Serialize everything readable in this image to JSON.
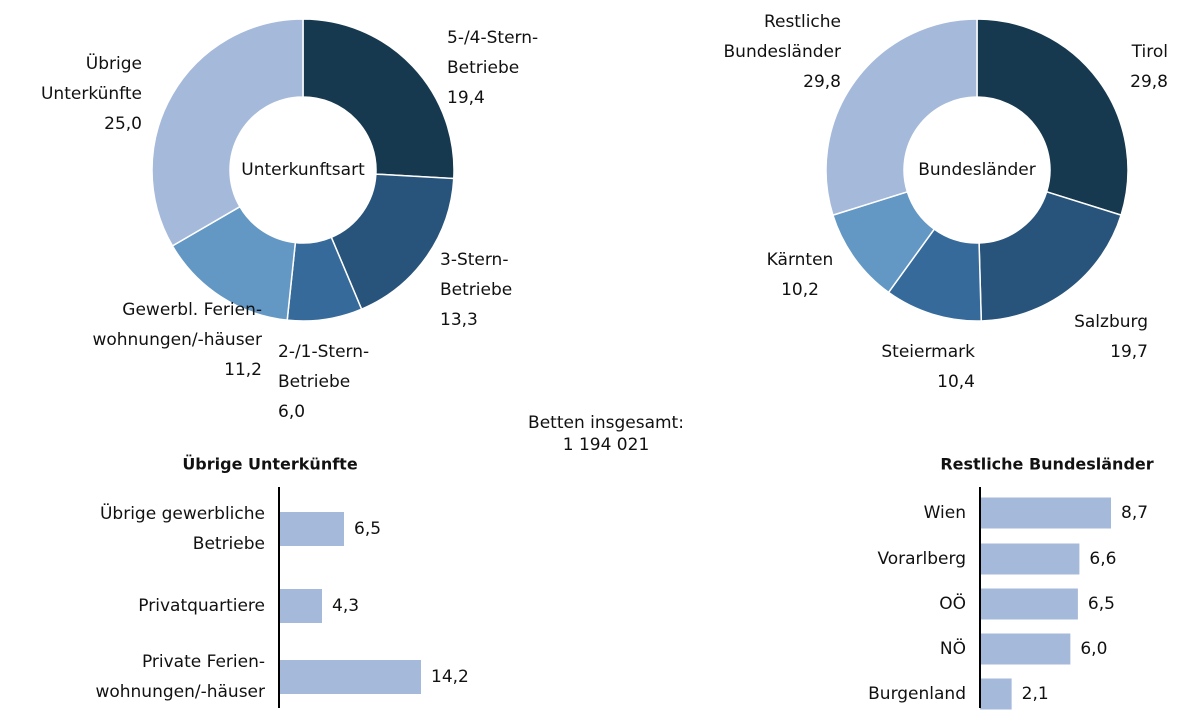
{
  "chart_data": [
    {
      "type": "pie",
      "center_label": "Unterkunftsart",
      "categories": [
        "5-/4-Stern-\nBetriebe",
        "3-Stern-\nBetriebe",
        "2-/1-Stern-\nBetriebe",
        "Gewerbl. Ferien-\nwohnungen/-häuser",
        "Übrige\nUnterkünfte"
      ],
      "values": [
        19.4,
        13.3,
        6.0,
        11.2,
        25.0
      ],
      "value_labels": [
        "19,4",
        "13,3",
        "6,0",
        "11,2",
        "25,0"
      ],
      "colors": [
        "#17394f",
        "#28537a",
        "#356a9a",
        "#6397c4",
        "#a5b9da"
      ]
    },
    {
      "type": "pie",
      "center_label": "Bundesländer",
      "categories": [
        "Tirol",
        "Salzburg",
        "Steiermark",
        "Kärnten",
        "Restliche\nBundesländer"
      ],
      "values": [
        29.8,
        19.7,
        10.4,
        10.2,
        29.8
      ],
      "value_labels": [
        "29,8",
        "19,7",
        "10,4",
        "10,2",
        "29,8"
      ],
      "colors": [
        "#17394f",
        "#28537a",
        "#356a9a",
        "#6397c4",
        "#a5b9da"
      ]
    },
    {
      "type": "barh",
      "title": "Übrige Unterkünfte",
      "categories": [
        "Übrige gewerbliche\nBetriebe",
        "Privatquartiere",
        "Private Ferien-\nwohnungen/-häuser"
      ],
      "values": [
        6.5,
        4.3,
        14.2
      ],
      "value_labels": [
        "6,5",
        "4,3",
        "14,2"
      ],
      "color": "#a5b9da"
    },
    {
      "type": "barh",
      "title": "Restliche Bundesländer",
      "categories": [
        "Wien",
        "Vorarlberg",
        "OÖ",
        "NÖ",
        "Burgenland"
      ],
      "values": [
        8.7,
        6.6,
        6.5,
        6.0,
        2.1
      ],
      "value_labels": [
        "8,7",
        "6,6",
        "6,5",
        "6,0",
        "2,1"
      ],
      "color": "#a5b9da"
    }
  ],
  "total_label": "Betten insgesamt:",
  "total": "1 194 021"
}
